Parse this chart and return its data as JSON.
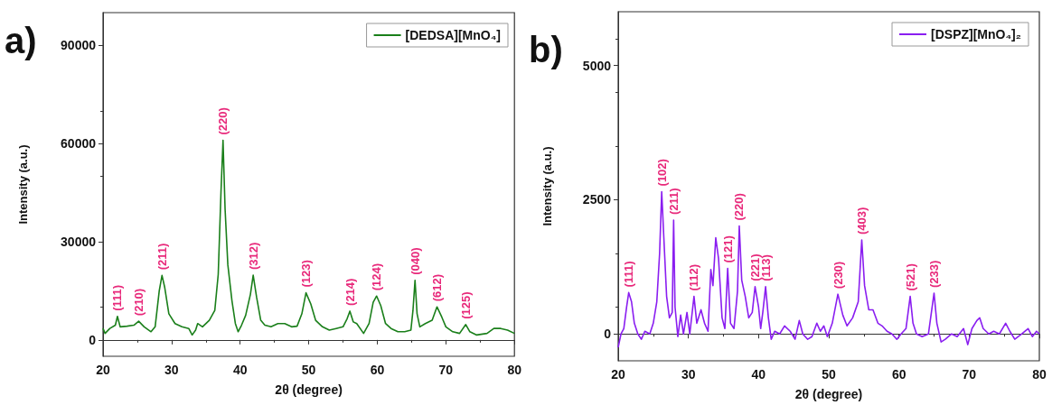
{
  "chart_data": [
    {
      "type": "line",
      "title": "a)",
      "xlabel": "2θ (degree)",
      "ylabel": "Intensity (a.u.)",
      "xlim": [
        20,
        80
      ],
      "xticks": [
        20,
        30,
        40,
        50,
        60,
        70,
        80
      ],
      "ylim": [
        -5000,
        100000
      ],
      "yticks": [
        0,
        30000,
        60000,
        90000
      ],
      "legend": "top right",
      "marker": "none",
      "series": [
        {
          "name": "[DEDSA][MnO₄]",
          "color": "#1a7f1a",
          "x": [
            20,
            20.3,
            21,
            21.8,
            22.1,
            22.5,
            23.5,
            24.5,
            25.2,
            26,
            27,
            27.6,
            28.2,
            28.6,
            29,
            29.6,
            30.5,
            31.5,
            32.5,
            33,
            33.5,
            33.8,
            34.5,
            35.5,
            36.3,
            36.8,
            37.2,
            37.5,
            37.8,
            38.2,
            38.8,
            39.3,
            39.7,
            40.2,
            40.8,
            41.5,
            41.9,
            42.4,
            43,
            43.6,
            44.5,
            45.5,
            46.5,
            47.5,
            48.3,
            49,
            49.6,
            50.3,
            51,
            52,
            53,
            54,
            55,
            55.6,
            56,
            56.5,
            57,
            58,
            58.8,
            59.4,
            59.9,
            60.5,
            61.2,
            62,
            63,
            64,
            64.9,
            65.2,
            65.5,
            65.8,
            66.2,
            67,
            68,
            68.7,
            69.4,
            70,
            71,
            72,
            72.9,
            73.5,
            74.5,
            76,
            77,
            78,
            79,
            80
          ],
          "values": [
            3500,
            2000,
            3500,
            4500,
            7200,
            4000,
            4200,
            4500,
            5700,
            4000,
            2500,
            4000,
            15000,
            19700,
            16000,
            8000,
            5000,
            4000,
            3500,
            1500,
            3000,
            5000,
            4000,
            6000,
            9000,
            20000,
            45000,
            61000,
            40000,
            23000,
            12000,
            5000,
            2500,
            4500,
            7500,
            14000,
            19800,
            13000,
            6000,
            4500,
            4000,
            5000,
            5000,
            4000,
            4200,
            8000,
            14400,
            11000,
            6000,
            4000,
            3000,
            3500,
            4000,
            6500,
            8800,
            5500,
            5000,
            2000,
            5000,
            11500,
            13400,
            10500,
            5000,
            3500,
            2500,
            2500,
            3000,
            9000,
            18200,
            8000,
            4000,
            5000,
            6000,
            10100,
            7000,
            4000,
            2500,
            2000,
            4700,
            2500,
            1500,
            2000,
            3500,
            3500,
            3000,
            2000
          ]
        }
      ],
      "annotations": [
        {
          "text": "(111)",
          "x": 22.1,
          "y": 7200
        },
        {
          "text": "(210)",
          "x": 25.2,
          "y": 5700
        },
        {
          "text": "(211)",
          "x": 28.6,
          "y": 19700
        },
        {
          "text": "(220)",
          "x": 37.5,
          "y": 61000
        },
        {
          "text": "(312)",
          "x": 41.9,
          "y": 19800
        },
        {
          "text": "(123)",
          "x": 49.6,
          "y": 14400
        },
        {
          "text": "(214)",
          "x": 56.0,
          "y": 8800
        },
        {
          "text": "(124)",
          "x": 59.9,
          "y": 13400
        },
        {
          "text": "(040)",
          "x": 65.5,
          "y": 18200
        },
        {
          "text": "(612)",
          "x": 68.7,
          "y": 10100
        },
        {
          "text": "(125)",
          "x": 72.9,
          "y": 4700
        }
      ]
    },
    {
      "type": "line",
      "title": "b)",
      "xlabel": "2θ (degree)",
      "ylabel": "Intensity (a.u.)",
      "xlim": [
        20,
        80
      ],
      "xticks": [
        20,
        30,
        40,
        50,
        60,
        70,
        80
      ],
      "ylim": [
        -500,
        6000
      ],
      "yticks": [
        0,
        2500,
        5000
      ],
      "legend": "top right",
      "marker": "none",
      "series": [
        {
          "name": "[DSPZ][MnO₄]₂",
          "color": "#8a1ef0",
          "x": [
            20,
            20.4,
            20.8,
            21.2,
            21.5,
            21.9,
            22.3,
            22.8,
            23.3,
            23.8,
            24.5,
            25,
            25.5,
            25.9,
            26.2,
            26.5,
            26.9,
            27.3,
            27.7,
            27.9,
            28.1,
            28.5,
            28.9,
            29.3,
            29.8,
            30.2,
            30.8,
            31.2,
            31.8,
            32.3,
            32.8,
            33.2,
            33.5,
            33.9,
            34.3,
            34.8,
            35.2,
            35.6,
            36,
            36.5,
            37,
            37.25,
            37.6,
            38.1,
            38.6,
            39.1,
            39.5,
            40,
            40.3,
            40.6,
            41,
            41.4,
            41.8,
            42.3,
            43,
            43.7,
            44.5,
            45.2,
            45.8,
            46.3,
            47,
            47.6,
            48.3,
            48.8,
            49.3,
            49.8,
            50.5,
            51.3,
            52,
            52.6,
            53.4,
            54.2,
            54.7,
            55.1,
            55.7,
            56.3,
            57,
            57.6,
            58.3,
            59,
            59.7,
            60.3,
            61,
            61.6,
            62,
            62.5,
            63.3,
            64.2,
            65,
            65.4,
            66,
            66.6,
            67.5,
            68.3,
            69.2,
            69.8,
            70.4,
            71.1,
            71.5,
            72,
            72.8,
            73.5,
            74.3,
            75.2,
            75.8,
            76.5,
            77.5,
            78.4,
            79,
            79.6,
            80
          ],
          "values": [
            -250,
            0,
            100,
            500,
            770,
            600,
            200,
            0,
            -100,
            50,
            0,
            200,
            600,
            1500,
            2650,
            1800,
            700,
            300,
            400,
            2120,
            500,
            -50,
            350,
            0,
            400,
            0,
            700,
            200,
            450,
            200,
            50,
            1200,
            900,
            1790,
            1400,
            300,
            100,
            1220,
            200,
            100,
            800,
            2010,
            1000,
            700,
            300,
            400,
            880,
            500,
            100,
            400,
            880,
            300,
            -100,
            50,
            0,
            150,
            50,
            -100,
            250,
            0,
            -100,
            -50,
            200,
            50,
            150,
            -50,
            200,
            740,
            350,
            150,
            300,
            600,
            1750,
            900,
            450,
            450,
            200,
            150,
            50,
            0,
            -100,
            0,
            100,
            700,
            200,
            0,
            -50,
            0,
            760,
            200,
            -150,
            -100,
            0,
            -50,
            100,
            -200,
            100,
            250,
            300,
            100,
            0,
            50,
            0,
            200,
            50,
            -100,
            0,
            100,
            -50,
            50,
            0
          ]
        }
      ],
      "annotations": [
        {
          "text": "(111)",
          "x": 21.5,
          "y": 770
        },
        {
          "text": "(102)",
          "x": 26.2,
          "y": 2650
        },
        {
          "text": "(211)",
          "x": 27.9,
          "y": 2120
        },
        {
          "text": "(112)",
          "x": 30.8,
          "y": 700
        },
        {
          "text": "(121)",
          "x": 35.6,
          "y": 1220
        },
        {
          "text": "(220)",
          "x": 37.25,
          "y": 2010
        },
        {
          "text": "(221)",
          "x": 39.5,
          "y": 880
        },
        {
          "text": "(113)",
          "x": 41.0,
          "y": 880
        },
        {
          "text": "(230)",
          "x": 51.3,
          "y": 740
        },
        {
          "text": "(403)",
          "x": 54.7,
          "y": 1750
        },
        {
          "text": "(521)",
          "x": 61.6,
          "y": 700
        },
        {
          "text": "(233)",
          "x": 65.0,
          "y": 760
        }
      ]
    }
  ]
}
